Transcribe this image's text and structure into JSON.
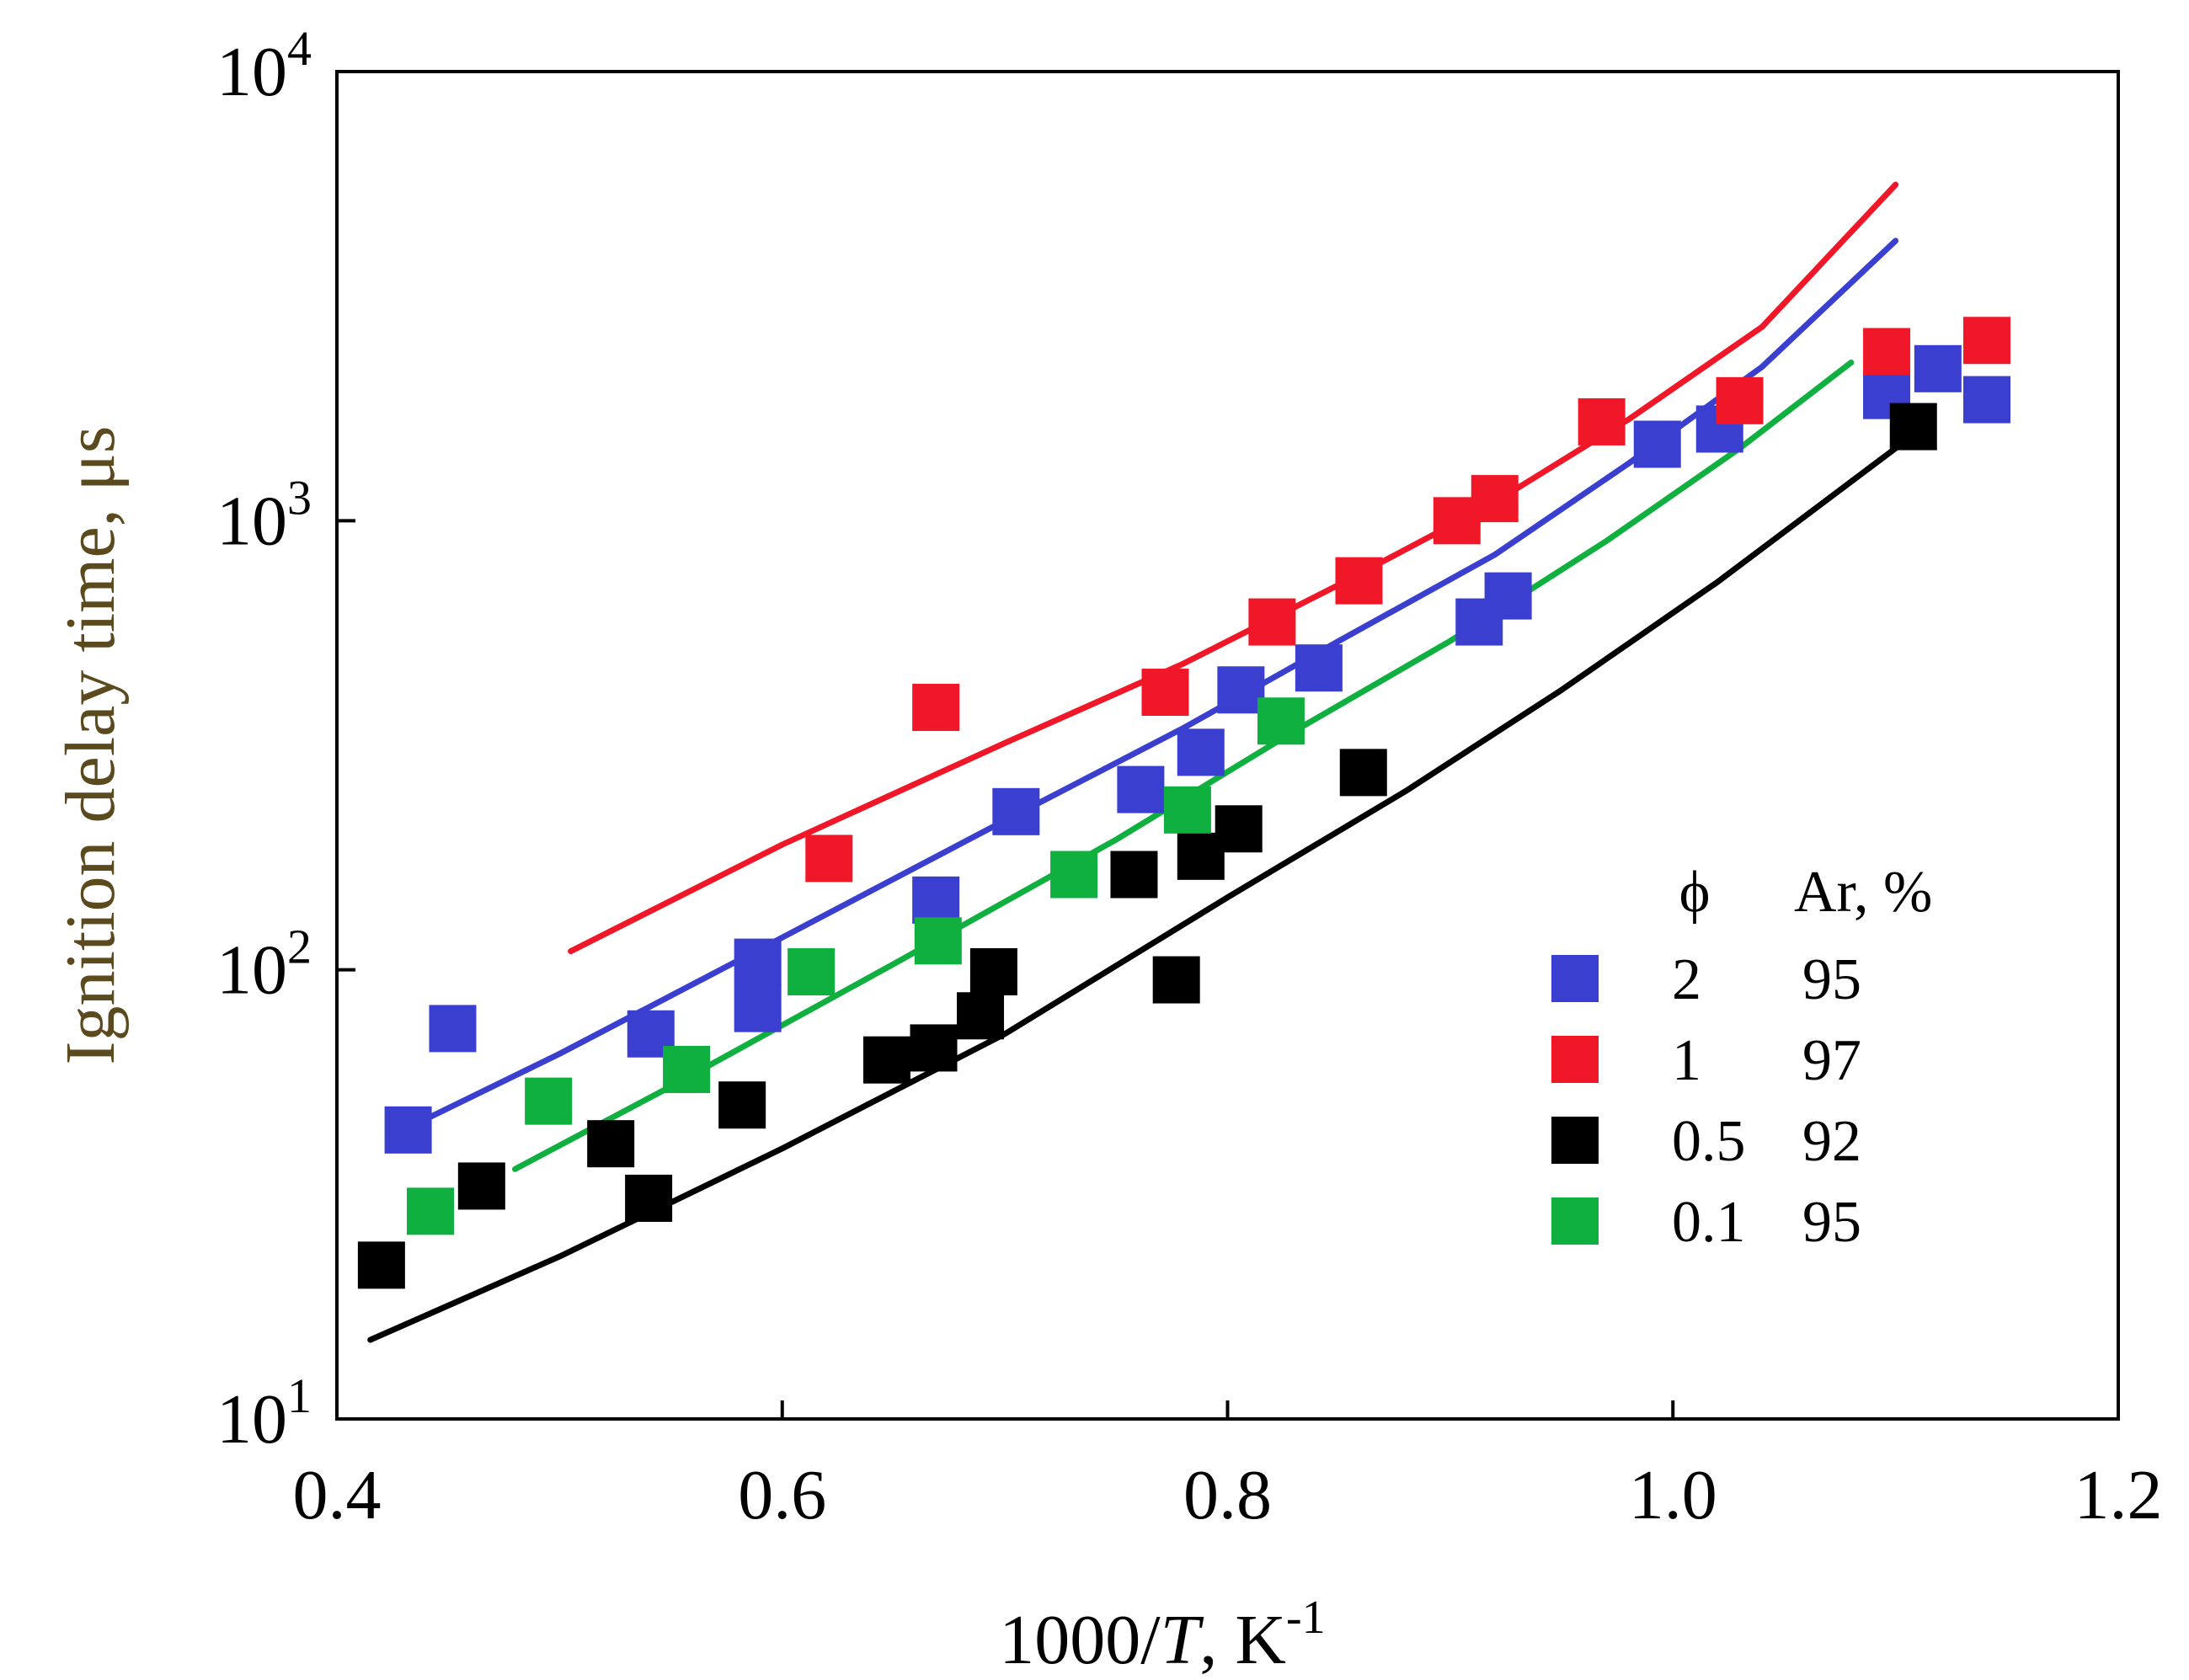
{
  "chart_data": {
    "type": "scatter",
    "xlabel": "1000/T, K-1",
    "xlabel_parts": {
      "prefix": "1000/",
      "italic": "T",
      "suffix": ", K",
      "sup": "-1"
    },
    "ylabel": "Ignition delay time, μs",
    "xlim": [
      0.4,
      1.2
    ],
    "ylim": [
      10,
      10000
    ],
    "yscale": "log",
    "x_ticks": [
      0.4,
      0.6,
      0.8,
      1.0,
      1.2
    ],
    "x_tick_labels": [
      "0.4",
      "0.6",
      "0.8",
      "1.0",
      "1.2"
    ],
    "y_ticks": [
      10,
      100,
      1000,
      10000
    ],
    "y_tick_labels": [
      {
        "base": "10",
        "exp": "1"
      },
      {
        "base": "10",
        "exp": "2"
      },
      {
        "base": "10",
        "exp": "3"
      },
      {
        "base": "10",
        "exp": "4"
      }
    ],
    "grid": false,
    "legend": {
      "position": "bottom-right",
      "header": [
        "ϕ",
        "Ar, %"
      ],
      "entries": [
        {
          "phi": "2",
          "ar": "95",
          "color": "#3a3fd0"
        },
        {
          "phi": "1",
          "ar": "97",
          "color": "#f01828"
        },
        {
          "phi": "0.5",
          "ar": "92",
          "color": "#000000"
        },
        {
          "phi": "0.1",
          "ar": "95",
          "color": "#10b040"
        }
      ]
    },
    "series": [
      {
        "color": "#3a3fd0",
        "points": [
          [
            0.432,
            44
          ],
          [
            0.452,
            74
          ],
          [
            0.541,
            72
          ],
          [
            0.589,
            104
          ],
          [
            0.589,
            82
          ],
          [
            0.669,
            143
          ],
          [
            0.705,
            225
          ],
          [
            0.761,
            252
          ],
          [
            0.788,
            305
          ],
          [
            0.806,
            420
          ],
          [
            0.841,
            470
          ],
          [
            0.913,
            595
          ],
          [
            0.926,
            680
          ],
          [
            0.993,
            1480
          ],
          [
            1.021,
            1600
          ],
          [
            1.096,
            1900
          ],
          [
            1.119,
            2180
          ],
          [
            1.141,
            1860
          ]
        ],
        "curve": [
          [
            0.43,
            44
          ],
          [
            0.5,
            65
          ],
          [
            0.6,
            118
          ],
          [
            0.7,
            215
          ],
          [
            0.78,
            345
          ],
          [
            0.85,
            540
          ],
          [
            0.92,
            840
          ],
          [
            0.98,
            1340
          ],
          [
            1.04,
            2200
          ],
          [
            1.1,
            4200
          ]
        ]
      },
      {
        "color": "#f01828",
        "points": [
          [
            0.621,
            177
          ],
          [
            0.669,
            384
          ],
          [
            0.772,
            415
          ],
          [
            0.82,
            595
          ],
          [
            0.859,
            735
          ],
          [
            0.903,
            1000
          ],
          [
            0.92,
            1120
          ],
          [
            0.968,
            1660
          ],
          [
            1.03,
            1850
          ],
          [
            1.096,
            2380
          ],
          [
            1.141,
            2520
          ]
        ],
        "curve": [
          [
            0.505,
            110
          ],
          [
            0.6,
            190
          ],
          [
            0.7,
            320
          ],
          [
            0.78,
            480
          ],
          [
            0.85,
            720
          ],
          [
            0.92,
            1100
          ],
          [
            0.98,
            1680
          ],
          [
            1.04,
            2700
          ],
          [
            1.1,
            5600
          ]
        ]
      },
      {
        "color": "#000000",
        "points": [
          [
            0.42,
            22
          ],
          [
            0.465,
            33
          ],
          [
            0.523,
            41
          ],
          [
            0.54,
            31
          ],
          [
            0.582,
            50
          ],
          [
            0.647,
            63
          ],
          [
            0.668,
            67
          ],
          [
            0.689,
            79
          ],
          [
            0.695,
            99
          ],
          [
            0.758,
            163
          ],
          [
            0.777,
            95
          ],
          [
            0.788,
            179
          ],
          [
            0.805,
            206
          ],
          [
            0.861,
            275
          ],
          [
            1.108,
            1620
          ]
        ],
        "curve": [
          [
            0.415,
            15
          ],
          [
            0.5,
            23
          ],
          [
            0.6,
            40
          ],
          [
            0.7,
            72
          ],
          [
            0.8,
            145
          ],
          [
            0.88,
            250
          ],
          [
            0.95,
            420
          ],
          [
            1.02,
            730
          ],
          [
            1.1,
            1450
          ]
        ]
      },
      {
        "color": "#10b040",
        "points": [
          [
            0.442,
            29
          ],
          [
            0.495,
            51
          ],
          [
            0.557,
            60
          ],
          [
            0.613,
            99
          ],
          [
            0.67,
            116
          ],
          [
            0.731,
            163
          ],
          [
            0.782,
            227
          ],
          [
            0.824,
            358
          ]
        ],
        "curve": [
          [
            0.48,
            36
          ],
          [
            0.55,
            55
          ],
          [
            0.65,
            103
          ],
          [
            0.75,
            195
          ],
          [
            0.83,
            340
          ],
          [
            0.9,
            540
          ],
          [
            0.97,
            900
          ],
          [
            1.03,
            1450
          ],
          [
            1.08,
            2250
          ]
        ]
      }
    ]
  }
}
